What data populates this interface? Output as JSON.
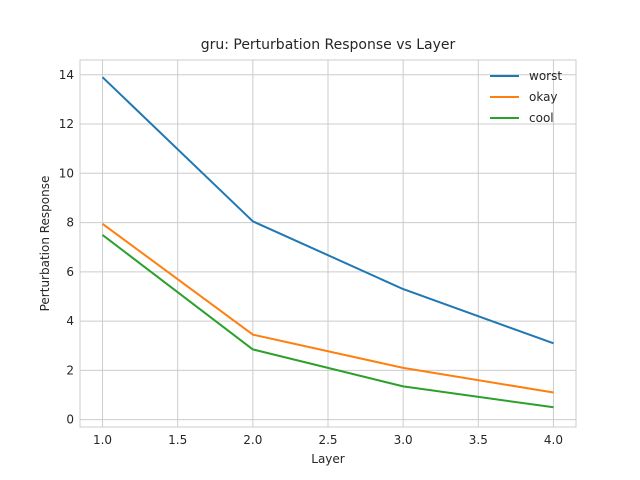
{
  "chart_data": {
    "type": "line",
    "title": "gru: Perturbation Response vs Layer",
    "xlabel": "Layer",
    "ylabel": "Perturbation Response",
    "x": [
      1.0,
      2.0,
      3.0,
      4.0
    ],
    "xlim": [
      0.85,
      4.15
    ],
    "ylim": [
      -0.3,
      14.6
    ],
    "xticks": [
      1.0,
      1.5,
      2.0,
      2.5,
      3.0,
      3.5,
      4.0
    ],
    "xtick_labels": [
      "1.0",
      "1.5",
      "2.0",
      "2.5",
      "3.0",
      "3.5",
      "4.0"
    ],
    "yticks": [
      0,
      2,
      4,
      6,
      8,
      10,
      12,
      14
    ],
    "ytick_labels": [
      "0",
      "2",
      "4",
      "6",
      "8",
      "10",
      "12",
      "14"
    ],
    "grid": true,
    "legend_position": "top-right",
    "series": [
      {
        "name": "worst",
        "color": "#1f77b4",
        "values": [
          13.9,
          8.05,
          5.3,
          3.1
        ]
      },
      {
        "name": "okay",
        "color": "#ff7f0e",
        "values": [
          7.95,
          3.45,
          2.1,
          1.1
        ]
      },
      {
        "name": "cool",
        "color": "#2ca02c",
        "values": [
          7.5,
          2.85,
          1.35,
          0.5
        ]
      }
    ]
  }
}
